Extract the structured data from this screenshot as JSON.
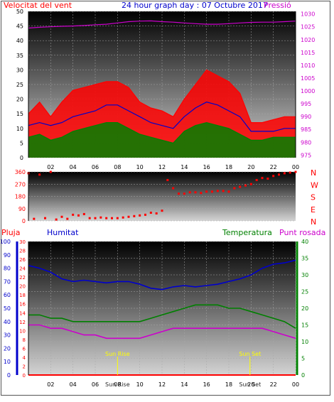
{
  "header": {
    "left_label": "Velocitat del vent",
    "title": "24 hour graph day : 07 Octubre 2017",
    "right_label": "Pressió"
  },
  "middle_header": {
    "pluja": "Pluja",
    "humitat": "Humitat",
    "temperatura": "Temperatura",
    "punt_rosada": "Punt rosada"
  },
  "colors": {
    "wind_gust": "#ff0000",
    "wind_avg": "#0000cc",
    "wind_speed": "#008000",
    "pressure": "#cc00cc",
    "direction": "#ff0000",
    "humidity": "#0000cc",
    "temperature": "#008000",
    "dewpoint": "#cc00cc",
    "rain": "#ff0000",
    "sun": "#ffff00",
    "title": "#0000cc"
  },
  "chart_data": [
    {
      "type": "line",
      "name": "wind-pressure",
      "x_ticks": [
        "02",
        "04",
        "06",
        "08",
        "10",
        "12",
        "14",
        "16",
        "18",
        "20",
        "22",
        "00"
      ],
      "y_left_ticks": [
        "0",
        "5",
        "10",
        "15",
        "20",
        "25",
        "30",
        "35",
        "40",
        "45",
        "50"
      ],
      "y_right_ticks": [
        "975",
        "980",
        "985",
        "990",
        "995",
        "1000",
        "1005",
        "1010",
        "1015",
        "1020",
        "1025",
        "1030"
      ],
      "ylim_left": [
        0,
        50
      ],
      "ylim_right": [
        974,
        1031
      ],
      "xlim": [
        0,
        24
      ],
      "x": [
        0,
        1,
        2,
        3,
        4,
        5,
        6,
        7,
        8,
        9,
        10,
        11,
        12,
        13,
        14,
        15,
        16,
        17,
        18,
        19,
        20,
        21,
        22,
        23,
        24
      ],
      "series": [
        {
          "name": "Gust",
          "axis": "left",
          "values": [
            15,
            19,
            14,
            19,
            23,
            24,
            25,
            26,
            26,
            24,
            19,
            17,
            16,
            14,
            20,
            25,
            30,
            28,
            26,
            22,
            12,
            12,
            13,
            14,
            14
          ]
        },
        {
          "name": "Average",
          "axis": "left",
          "values": [
            11,
            12,
            11,
            12,
            14,
            15,
            16,
            18,
            18,
            16,
            14,
            12,
            11,
            10,
            14,
            17,
            19,
            18,
            16,
            14,
            9,
            9,
            9,
            10,
            10
          ]
        },
        {
          "name": "Speed",
          "axis": "left",
          "values": [
            7,
            8,
            6,
            7,
            9,
            10,
            11,
            12,
            12,
            10,
            8,
            7,
            6,
            5,
            9,
            11,
            12,
            11,
            10,
            8,
            6,
            6,
            7,
            7,
            7
          ]
        },
        {
          "name": "Pressure",
          "axis": "right",
          "values": [
            1024.5,
            1024.8,
            1025.0,
            1025.2,
            1025.3,
            1025.5,
            1025.8,
            1026.0,
            1026.5,
            1027.0,
            1027.2,
            1027.3,
            1027.0,
            1026.8,
            1026.5,
            1026.2,
            1026.0,
            1026.0,
            1026.2,
            1026.5,
            1026.7,
            1026.8,
            1026.8,
            1027.0,
            1027.2
          ]
        }
      ]
    },
    {
      "type": "scatter",
      "name": "wind-direction",
      "y_ticks": [
        "0",
        "90",
        "180",
        "270",
        "360"
      ],
      "direction_labels": [
        "N",
        "W",
        "S",
        "E",
        "N"
      ],
      "ylim": [
        0,
        360
      ],
      "xlim": [
        0,
        24
      ],
      "x": [
        0,
        0.5,
        1,
        1.5,
        2,
        2.5,
        3,
        3.5,
        4,
        4.5,
        5,
        5.5,
        6,
        6.5,
        7,
        7.5,
        8,
        8.5,
        9,
        9.5,
        10,
        10.5,
        11,
        11.5,
        12,
        12.5,
        13,
        13.5,
        14,
        14.5,
        15,
        15.5,
        16,
        16.5,
        17,
        17.5,
        18,
        18.5,
        19,
        19.5,
        20,
        20.5,
        21,
        21.5,
        22,
        22.5,
        23,
        23.5,
        24
      ],
      "values": [
        350,
        15,
        340,
        20,
        360,
        10,
        30,
        15,
        45,
        40,
        50,
        20,
        20,
        25,
        20,
        20,
        20,
        25,
        30,
        35,
        40,
        45,
        60,
        55,
        75,
        300,
        240,
        200,
        200,
        210,
        210,
        205,
        215,
        215,
        220,
        220,
        215,
        240,
        250,
        260,
        270,
        300,
        315,
        310,
        330,
        340,
        350,
        355,
        360
      ]
    },
    {
      "type": "line",
      "name": "humidity-temperature",
      "x_ticks": [
        "02",
        "04",
        "06",
        "08",
        "10",
        "12",
        "14",
        "16",
        "18",
        "20",
        "22",
        "00"
      ],
      "y_pluja_ticks": [
        "0",
        "2",
        "4",
        "6",
        "8",
        "10",
        "12",
        "14",
        "16",
        "18",
        "20",
        "22",
        "24",
        "26",
        "28",
        "30"
      ],
      "y_humitat_ticks": [
        "0",
        "10",
        "20",
        "30",
        "40",
        "50",
        "60",
        "70",
        "80",
        "90",
        "100"
      ],
      "y_temp_ticks": [
        "0",
        "5",
        "10",
        "15",
        "20",
        "25",
        "30",
        "35",
        "40"
      ],
      "ylim_humitat": [
        0,
        100
      ],
      "ylim_temp": [
        0,
        40
      ],
      "xlim": [
        0,
        24
      ],
      "x": [
        0,
        1,
        2,
        3,
        4,
        5,
        6,
        7,
        8,
        9,
        10,
        11,
        12,
        13,
        14,
        15,
        16,
        17,
        18,
        19,
        20,
        21,
        22,
        23,
        24
      ],
      "series": [
        {
          "name": "Humitat",
          "axis": "humitat",
          "values": [
            82,
            80,
            77,
            72,
            70,
            71,
            70,
            69,
            70,
            70,
            68,
            65,
            64,
            66,
            67,
            66,
            67,
            68,
            70,
            72,
            75,
            80,
            83,
            84,
            86
          ]
        },
        {
          "name": "Temperatura",
          "axis": "temp",
          "values": [
            18,
            18,
            17,
            17,
            16,
            16,
            16,
            16,
            16,
            16,
            16,
            17,
            18,
            19,
            20,
            21,
            21,
            21,
            20,
            20,
            19,
            18,
            17,
            16,
            14
          ]
        },
        {
          "name": "Punt rosada",
          "axis": "temp",
          "values": [
            15,
            15,
            14,
            14,
            13,
            12,
            12,
            11,
            11,
            11,
            11,
            12,
            13,
            14,
            14,
            14,
            14,
            14,
            14,
            14,
            14,
            14,
            13,
            12,
            11
          ]
        },
        {
          "name": "Pluja",
          "axis": "pluja",
          "values": [
            0,
            0,
            0,
            0,
            0,
            0,
            0,
            0,
            0,
            0,
            0,
            0,
            0,
            0,
            0,
            0,
            0,
            0,
            0,
            0,
            0,
            0,
            0,
            0,
            0
          ]
        }
      ],
      "annotations": [
        {
          "label": "Sun Rise",
          "x": 8.0,
          "axis_label": "Sun Rise"
        },
        {
          "label": "Sun Set",
          "x": 19.9,
          "axis_label": "Sun Set"
        }
      ]
    }
  ]
}
